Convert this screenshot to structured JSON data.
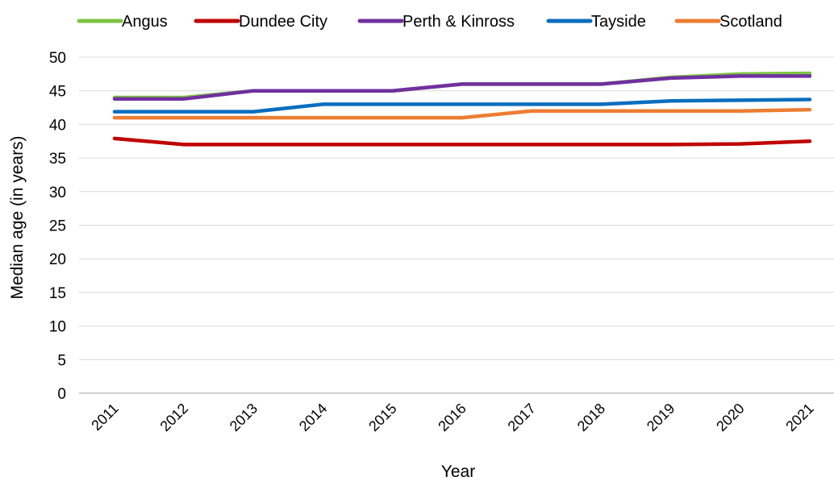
{
  "chart_data": {
    "type": "line",
    "title": "",
    "xlabel": "Year",
    "ylabel": "Median age (in years)",
    "categories": [
      "2011",
      "2012",
      "2013",
      "2014",
      "2015",
      "2016",
      "2017",
      "2018",
      "2019",
      "2020",
      "2021"
    ],
    "y_ticks": [
      "0",
      "5",
      "10",
      "15",
      "20",
      "25",
      "30",
      "35",
      "40",
      "45",
      "50"
    ],
    "ylim": [
      0,
      50
    ],
    "grid": true,
    "legend_position": "top",
    "series": [
      {
        "name": "Angus",
        "color": "#7dc443",
        "values": [
          44,
          44,
          45,
          45,
          45,
          46,
          46,
          46,
          47,
          47.5,
          47.6
        ]
      },
      {
        "name": "Dundee City",
        "color": "#c00000",
        "values": [
          37.9,
          37,
          37,
          37,
          37,
          37,
          37,
          37,
          37,
          37.1,
          37.5
        ]
      },
      {
        "name": "Perth & Kinross",
        "color": "#7030a0",
        "values": [
          43.8,
          43.8,
          45,
          45,
          45,
          46,
          46,
          46,
          46.9,
          47.2,
          47.2
        ]
      },
      {
        "name": "Tayside",
        "color": "#0a6ebd",
        "values": [
          41.9,
          41.9,
          41.9,
          43,
          43,
          43,
          43,
          43,
          43.5,
          43.6,
          43.7
        ]
      },
      {
        "name": "Scotland",
        "color": "#ed7d31",
        "values": [
          41,
          41,
          41,
          41,
          41,
          41,
          42,
          42,
          42,
          42,
          42.2
        ]
      }
    ]
  }
}
